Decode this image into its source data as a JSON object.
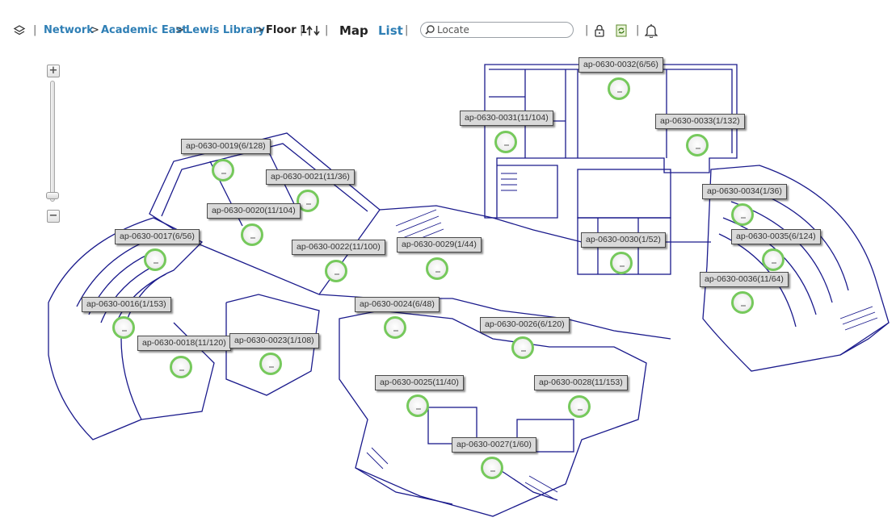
{
  "breadcrumb": {
    "items": [
      {
        "label": "Network"
      },
      {
        "label": "Academic East"
      },
      {
        "label": "Lewis Library"
      }
    ],
    "current": "Floor 1",
    "separator": ">"
  },
  "view_modes": {
    "map": "Map",
    "list": "List"
  },
  "search": {
    "placeholder": "Locate",
    "value": ""
  },
  "zoom": {
    "plus": "+",
    "minus": "−"
  },
  "colors": {
    "link": "#2f7fb5",
    "ap_ok": "#76c95c",
    "floorplan": "#1a1a8c"
  },
  "icons": [
    "layers-icon",
    "sort-icon",
    "search-icon",
    "lock-icon",
    "refresh-icon",
    "bell-icon"
  ],
  "access_points": [
    {
      "label": "ap-0630-0032(6/56)"
    },
    {
      "label": "ap-0630-0031(11/104)"
    },
    {
      "label": "ap-0630-0033(1/132)"
    },
    {
      "label": "ap-0630-0019(6/128)"
    },
    {
      "label": "ap-0630-0021(11/36)"
    },
    {
      "label": "ap-0630-0020(11/104)"
    },
    {
      "label": "ap-0630-0017(6/56)"
    },
    {
      "label": "ap-0630-0022(11/100)"
    },
    {
      "label": "ap-0630-0029(1/44)"
    },
    {
      "label": "ap-0630-0034(1/36)"
    },
    {
      "label": "ap-0630-0035(6/124)"
    },
    {
      "label": "ap-0630-0030(1/52)"
    },
    {
      "label": "ap-0630-0036(11/64)"
    },
    {
      "label": "ap-0630-0016(1/153)"
    },
    {
      "label": "ap-0630-0024(6/48)"
    },
    {
      "label": "ap-0630-0026(6/120)"
    },
    {
      "label": "ap-0630-0018(11/120)"
    },
    {
      "label": "ap-0630-0023(1/108)"
    },
    {
      "label": "ap-0630-0025(11/40)"
    },
    {
      "label": "ap-0630-0028(11/153)"
    },
    {
      "label": "ap-0630-0027(1/60)"
    }
  ]
}
